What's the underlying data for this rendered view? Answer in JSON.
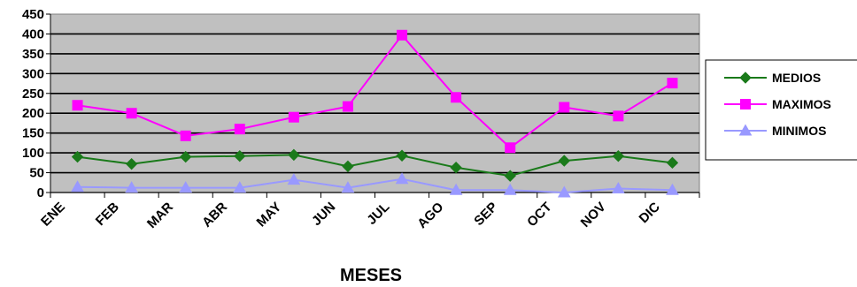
{
  "chart_data": {
    "type": "line",
    "categories": [
      "ENE",
      "FEB",
      "MAR",
      "ABR",
      "MAY",
      "JUN",
      "JUL",
      "AGO",
      "SEP",
      "OCT",
      "NOV",
      "DIC"
    ],
    "series": [
      {
        "name": "MEDIOS",
        "color": "#1a7a1a",
        "marker": "diamond",
        "values": [
          90,
          72,
          90,
          92,
          95,
          66,
          93,
          63,
          42,
          80,
          92,
          75
        ]
      },
      {
        "name": "MAXIMOS",
        "color": "#ff00ff",
        "marker": "square",
        "values": [
          220,
          200,
          143,
          160,
          190,
          217,
          397,
          240,
          113,
          215,
          193,
          276
        ]
      },
      {
        "name": "MINIMOS",
        "color": "#9999ff",
        "marker": "triangle",
        "values": [
          14,
          12,
          12,
          12,
          32,
          12,
          34,
          6,
          6,
          0,
          10,
          6
        ]
      }
    ],
    "title": "",
    "xlabel": "MESES",
    "ylabel": "",
    "ylim": [
      0,
      450
    ],
    "yticks": [
      "0",
      "50",
      "100",
      "150",
      "200",
      "250",
      "300",
      "350",
      "400",
      "450"
    ],
    "grid": true,
    "plot_background": "#c0c0c0",
    "legend_position": "right"
  }
}
